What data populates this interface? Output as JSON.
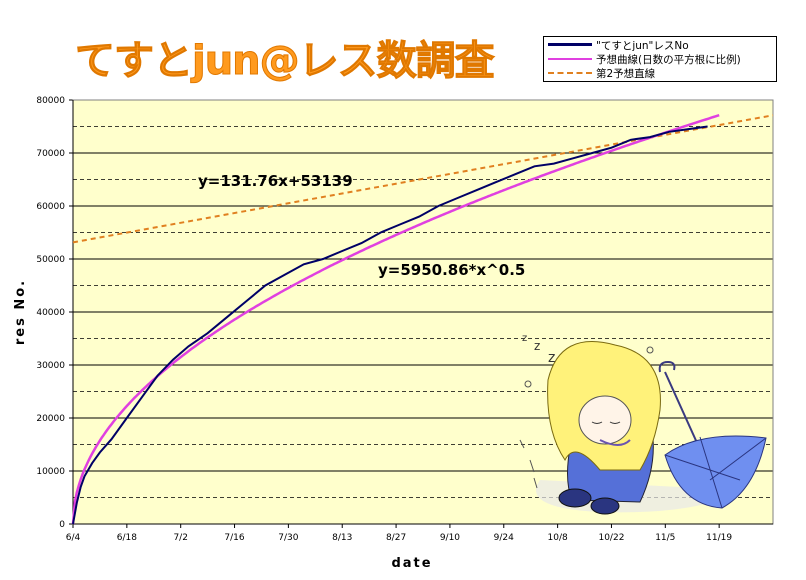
{
  "title": "てすとjun@レス数調査",
  "chart_data": {
    "type": "line",
    "xlabel": "date",
    "ylabel": "res No.",
    "ylim": [
      0,
      80000
    ],
    "yticks": [
      0,
      10000,
      20000,
      30000,
      40000,
      50000,
      60000,
      70000,
      80000
    ],
    "xticks": [
      {
        "day": 0,
        "label": "6/4"
      },
      {
        "day": 14,
        "label": "6/18"
      },
      {
        "day": 28,
        "label": "7/2"
      },
      {
        "day": 42,
        "label": "7/16"
      },
      {
        "day": 56,
        "label": "7/30"
      },
      {
        "day": 70,
        "label": "8/13"
      },
      {
        "day": 84,
        "label": "8/27"
      },
      {
        "day": 98,
        "label": "9/10"
      },
      {
        "day": 112,
        "label": "9/24"
      },
      {
        "day": 126,
        "label": "10/8"
      },
      {
        "day": 140,
        "label": "10/22"
      },
      {
        "day": 154,
        "label": "11/5"
      },
      {
        "day": 168,
        "label": "11/19"
      }
    ],
    "xlim": [
      0,
      182
    ],
    "grid": true,
    "legend_position": "top-right",
    "series": [
      {
        "name": "\"てすとjun\"レスNo",
        "color": "#000066",
        "style": "solid",
        "x": [
          0,
          1,
          2,
          3,
          5,
          7,
          10,
          14,
          18,
          22,
          26,
          30,
          35,
          40,
          45,
          50,
          55,
          60,
          65,
          70,
          75,
          80,
          85,
          90,
          95,
          100,
          105,
          110,
          115,
          120,
          125,
          130,
          135,
          140,
          145,
          150,
          155,
          160,
          165
        ],
        "y": [
          0,
          4000,
          7000,
          9000,
          11500,
          13500,
          16000,
          20000,
          24000,
          28000,
          31000,
          33500,
          36000,
          39000,
          42000,
          45000,
          47000,
          49000,
          50000,
          51500,
          53000,
          55000,
          56500,
          58000,
          60000,
          61500,
          63000,
          64500,
          66000,
          67500,
          68000,
          69000,
          70000,
          71000,
          72500,
          73000,
          74000,
          74500,
          75000
        ]
      },
      {
        "name": "予想曲線(日数の平方根に比例)",
        "color": "#e040e0",
        "style": "solid",
        "equation": "y=5950.86*x^0.5",
        "coef": 5950.86,
        "power": 0.5,
        "domain": [
          0,
          168
        ]
      },
      {
        "name": "第2予想直線",
        "color": "#e08020",
        "style": "dashed",
        "equation": "y=131.76x+53139",
        "slope": 131.76,
        "intercept": 53139,
        "domain": [
          0,
          182
        ]
      }
    ],
    "annotations": [
      {
        "text": "y=131.76x+53139"
      },
      {
        "text": "y=5950.86*x^0.5"
      }
    ]
  }
}
